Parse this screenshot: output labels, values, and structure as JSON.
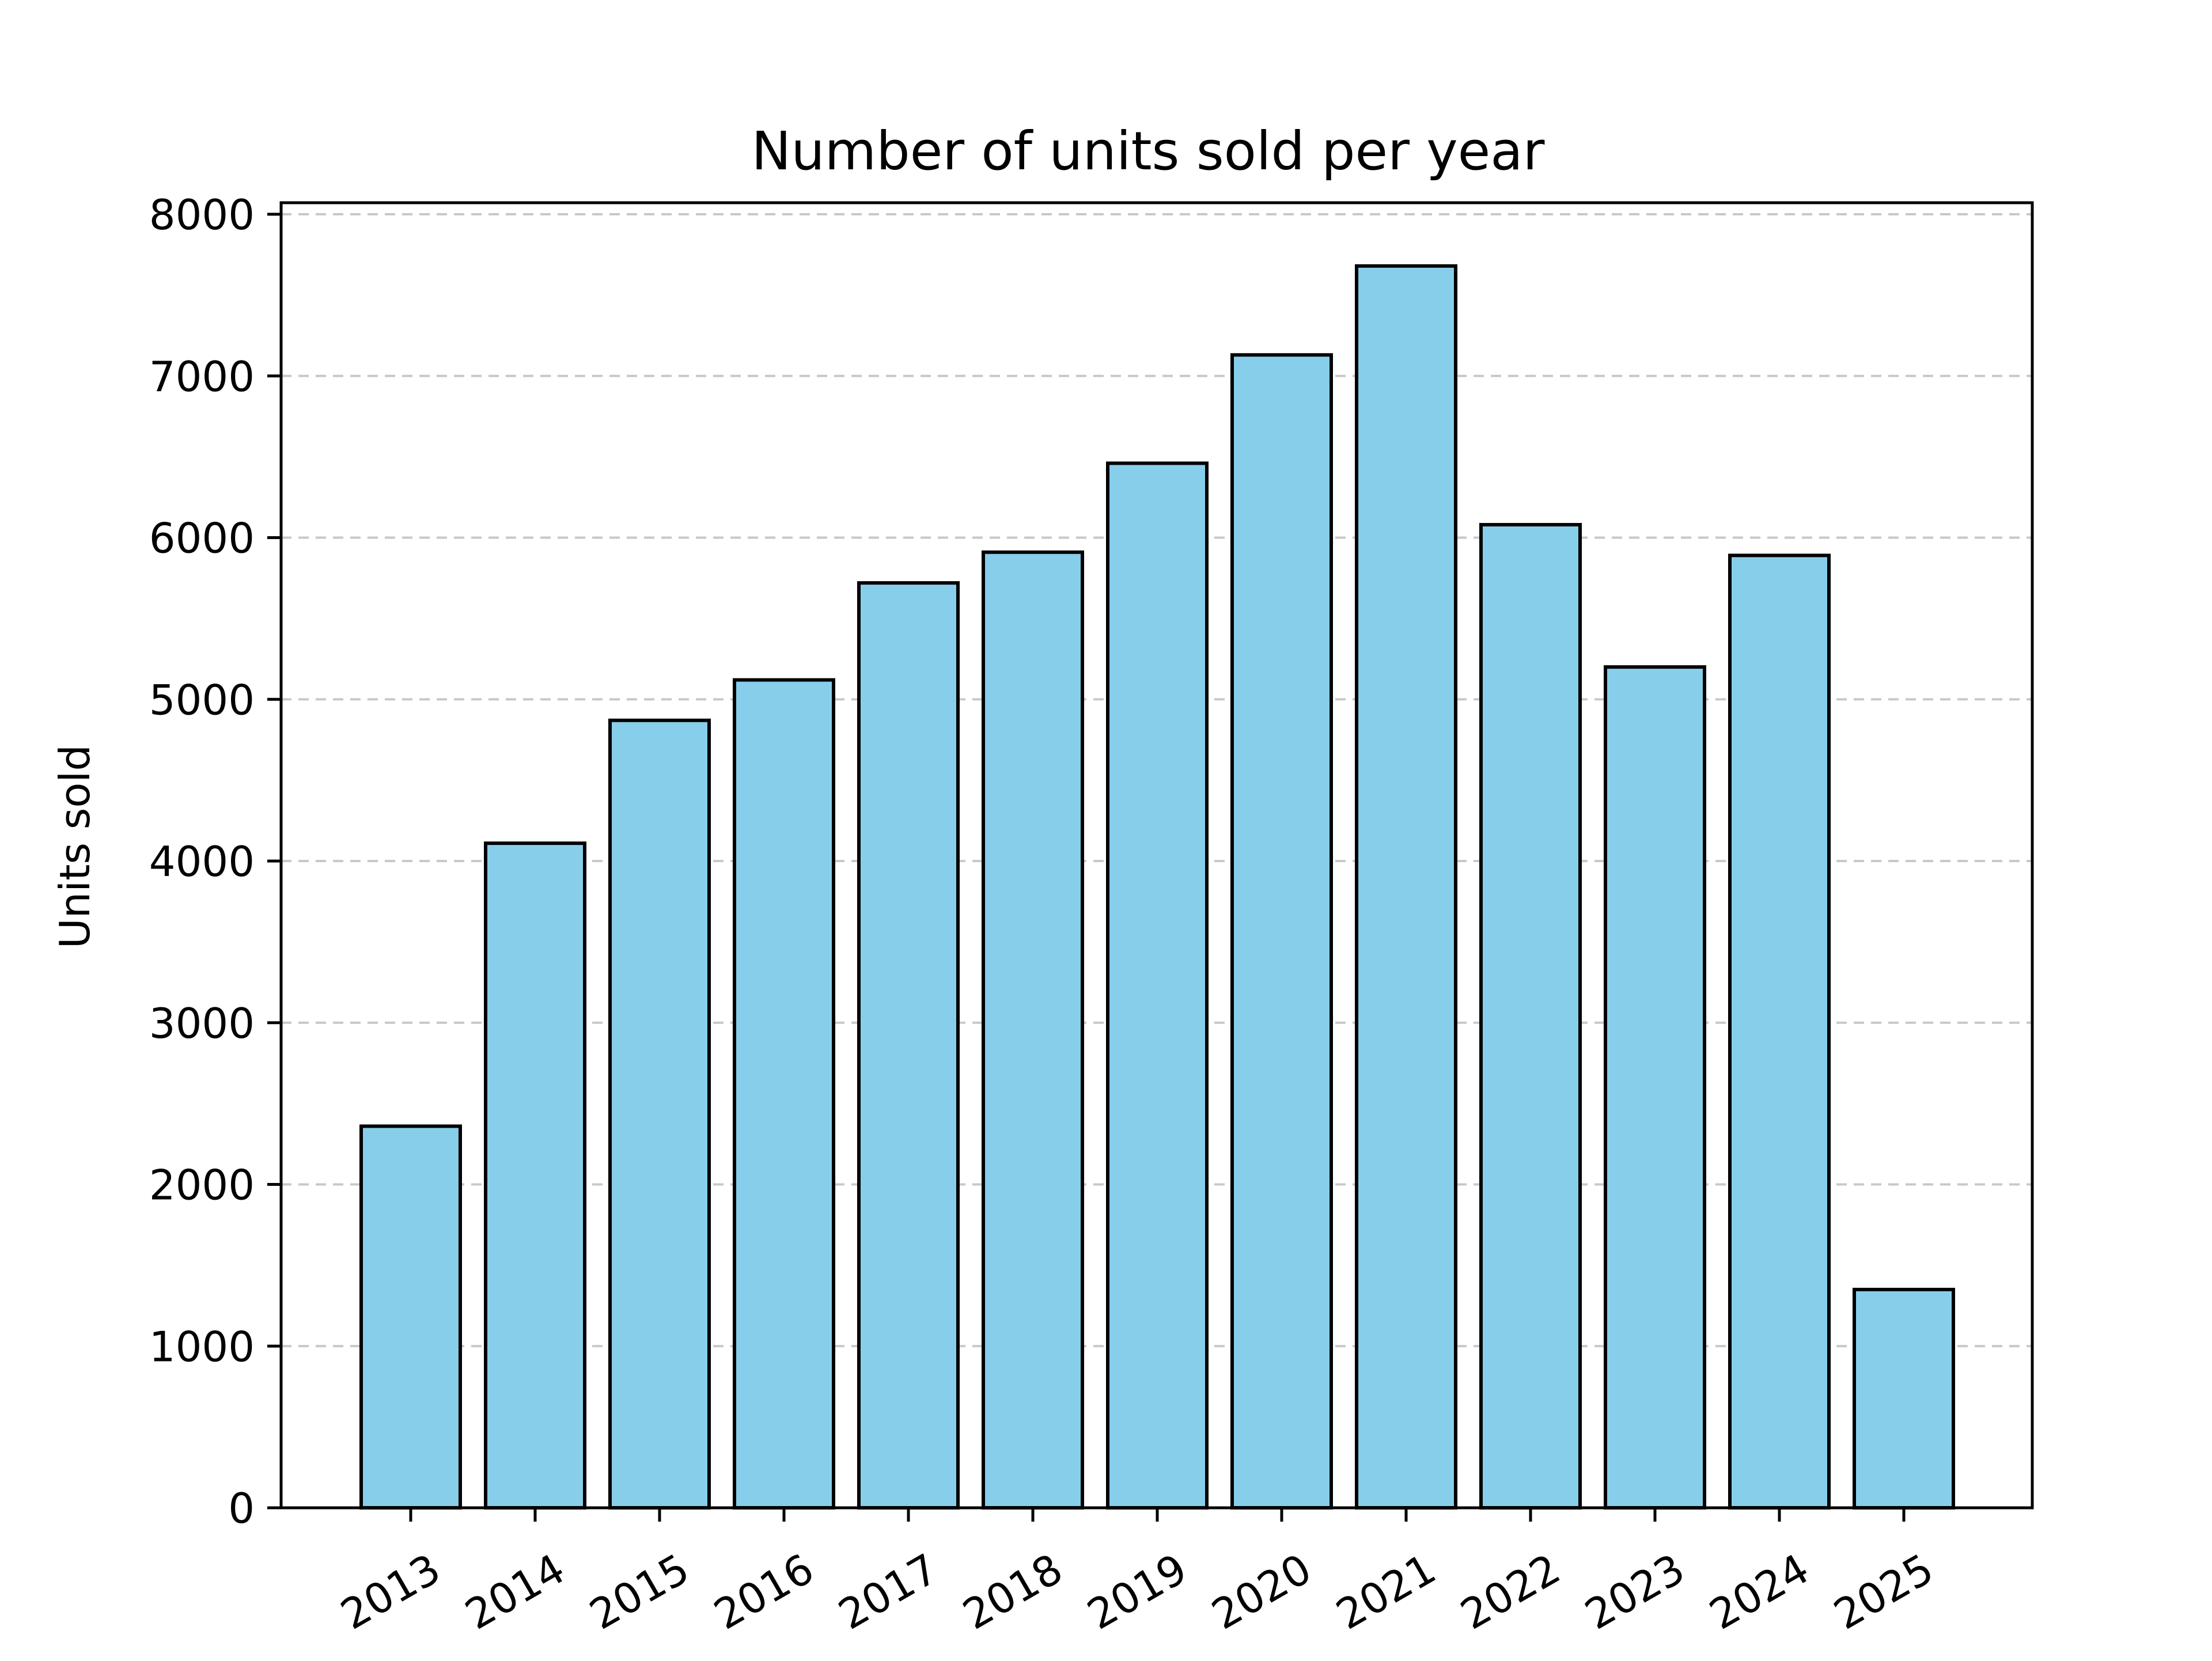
{
  "chart_data": {
    "type": "bar",
    "title": "Number of units sold per year",
    "xlabel": "",
    "ylabel": "Units sold",
    "categories": [
      "2013",
      "2014",
      "2015",
      "2016",
      "2017",
      "2018",
      "2019",
      "2020",
      "2021",
      "2022",
      "2023",
      "2024",
      "2025"
    ],
    "values": [
      2360,
      4110,
      4870,
      5120,
      5720,
      5910,
      6460,
      7130,
      7680,
      6080,
      5200,
      5890,
      1350
    ],
    "ylim": [
      0,
      8000
    ],
    "yticks": [
      0,
      1000,
      2000,
      3000,
      4000,
      5000,
      6000,
      7000,
      8000
    ],
    "grid": "y-axis, dashed",
    "legend": "none",
    "colors": {
      "bar_fill": "#87ceeb",
      "bar_edge": "#000000",
      "grid": "#c8c8c8",
      "axis": "#000000"
    }
  }
}
